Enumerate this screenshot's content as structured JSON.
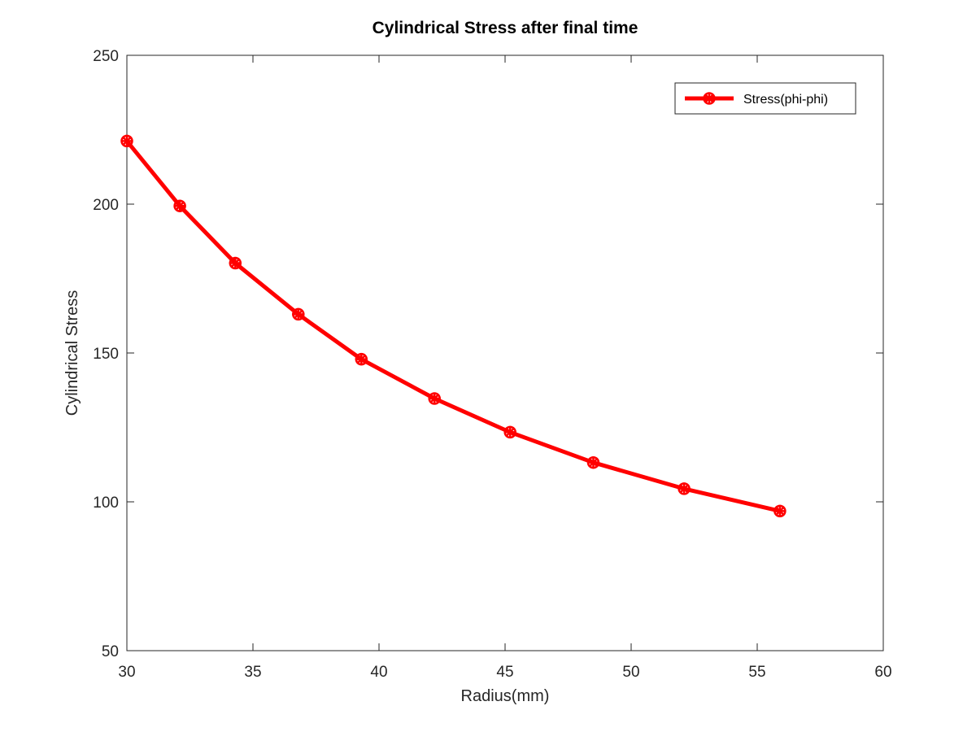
{
  "chart_data": {
    "type": "line",
    "title": "Cylindrical Stress after final time",
    "xlabel": "Radius(mm)",
    "ylabel": "Cylindrical Stress",
    "xlim": [
      30,
      60
    ],
    "ylim": [
      50,
      250
    ],
    "xticks": [
      "30",
      "35",
      "40",
      "45",
      "50",
      "55",
      "60"
    ],
    "yticks": [
      "50",
      "100",
      "150",
      "200",
      "250"
    ],
    "grid": false,
    "legend_position": "top-right",
    "series": [
      {
        "name": "Stress(phi-phi)",
        "color": "#ff0000",
        "marker": "asterisk-circle",
        "x": [
          30.0,
          32.1,
          34.3,
          36.8,
          39.3,
          42.2,
          45.2,
          48.5,
          52.1,
          55.9
        ],
        "y": [
          221.2,
          199.4,
          180.2,
          163.0,
          147.9,
          134.7,
          123.4,
          113.2,
          104.4,
          96.9
        ]
      }
    ]
  }
}
